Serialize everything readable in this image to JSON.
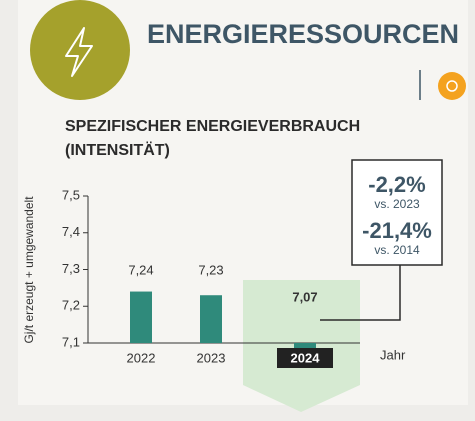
{
  "chart_data": {
    "type": "bar",
    "title": "ENERGIERESSOURCEN",
    "subtitle": "SPEZIFISCHER ENERGIEVERBRAUCH (INTENSITÄT)",
    "y_label": "Gj/t erzeugt + umgewandelt",
    "x_label": "Jahr",
    "categories": [
      "2022",
      "2023",
      "2024"
    ],
    "values": [
      7.24,
      7.23,
      7.07
    ],
    "value_labels": [
      "7,24",
      "7,23",
      "7,07"
    ],
    "color": "#2f8a7b",
    "ylim": [
      7.1,
      7.5
    ],
    "yticks": [
      {
        "value": 7.1,
        "label": "7,1"
      },
      {
        "value": 7.2,
        "label": "7,2"
      },
      {
        "value": 7.3,
        "label": "7,3"
      },
      {
        "value": 7.4,
        "label": "7,4"
      },
      {
        "value": 7.5,
        "label": "7,5"
      }
    ],
    "annotations": [
      "-2,2%",
      "vs. 2023",
      "-21,4%",
      "vs. 2014"
    ]
  }
}
